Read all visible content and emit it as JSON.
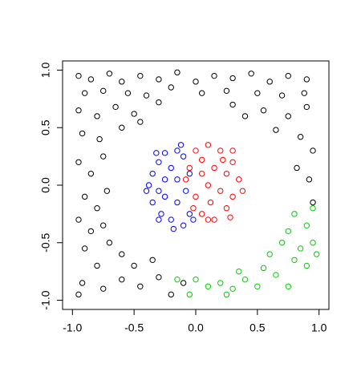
{
  "chart_data": {
    "type": "scatter",
    "xlim": [
      -1.08,
      1.08
    ],
    "ylim": [
      -1.08,
      1.08
    ],
    "xticks": [
      {
        "value": -1,
        "label": "-1.0"
      },
      -0.5,
      {
        "value": 0,
        "label": "0.0"
      },
      0.5,
      {
        "value": 1,
        "label": "1.0"
      }
    ],
    "yticks": [
      {
        "value": -1,
        "label": "-1.0"
      },
      -0.5,
      {
        "value": 0,
        "label": "0.0"
      },
      0.5,
      {
        "value": 1,
        "label": "1.0"
      }
    ],
    "series": [
      {
        "color": "#000000",
        "x": [
          -0.95,
          -0.85,
          -0.7,
          -0.6,
          -0.45,
          -0.3,
          -0.15,
          0.0,
          0.15,
          0.3,
          0.45,
          0.6,
          0.75,
          0.9,
          -0.9,
          -0.75,
          -0.55,
          -0.4,
          -0.2,
          0.05,
          0.25,
          0.5,
          0.7,
          0.88,
          -0.95,
          -0.8,
          -0.65,
          -0.5,
          0.55,
          0.75,
          0.9,
          -0.92,
          -0.78,
          -0.6,
          0.65,
          0.85,
          0.95,
          -0.95,
          -0.85,
          -0.75,
          0.82,
          0.92,
          -0.9,
          -0.8,
          -0.72,
          0.95,
          -0.95,
          -0.85,
          -0.75,
          -0.9,
          -0.7,
          -0.6,
          -0.8,
          -0.5,
          -0.92,
          -0.75,
          -0.6,
          -0.45,
          -0.3,
          -0.2,
          -0.95,
          -0.35,
          -0.1,
          0.4,
          -0.45,
          0.3,
          -0.3
        ],
        "y": [
          0.95,
          0.92,
          0.97,
          0.9,
          0.95,
          0.92,
          0.98,
          0.9,
          0.95,
          0.93,
          0.97,
          0.9,
          0.95,
          0.92,
          0.8,
          0.82,
          0.8,
          0.78,
          0.85,
          0.8,
          0.82,
          0.8,
          0.78,
          0.8,
          0.65,
          0.6,
          0.68,
          0.62,
          0.65,
          0.6,
          0.68,
          0.45,
          0.4,
          0.5,
          0.48,
          0.42,
          0.3,
          0.2,
          0.1,
          0.25,
          0.15,
          0.05,
          -0.1,
          -0.2,
          -0.05,
          -0.15,
          -0.3,
          -0.4,
          -0.35,
          -0.55,
          -0.5,
          -0.6,
          -0.7,
          -0.7,
          -0.85,
          -0.9,
          -0.82,
          -0.88,
          -0.8,
          -0.95,
          -0.95,
          -0.65,
          -0.85,
          0.6,
          0.55,
          0.7,
          0.72
        ]
      },
      {
        "color": "#0000ff",
        "x": [
          -0.35,
          -0.3,
          -0.25,
          -0.15,
          -0.1,
          -0.2,
          -0.38,
          -0.3,
          -0.25,
          -0.15,
          -0.05,
          -0.35,
          -0.28,
          -0.2,
          -0.1,
          -0.05,
          -0.15,
          -0.25,
          -0.08,
          -0.32,
          -0.4,
          -0.18,
          -0.02,
          -0.12,
          -0.3
        ],
        "y": [
          0.1,
          0.2,
          0.28,
          0.3,
          0.25,
          0.15,
          0.0,
          -0.05,
          0.05,
          0.05,
          0.1,
          -0.15,
          -0.25,
          -0.3,
          -0.35,
          -0.25,
          -0.15,
          -0.1,
          -0.05,
          0.28,
          -0.05,
          -0.38,
          -0.3,
          0.35,
          -0.3
        ]
      },
      {
        "color": "#ff0000",
        "x": [
          0.0,
          0.1,
          0.2,
          0.3,
          0.35,
          0.3,
          0.25,
          0.15,
          0.05,
          -0.05,
          0.05,
          0.15,
          0.25,
          0.1,
          0.2,
          0.0,
          -0.08,
          0.3,
          0.12,
          0.22,
          0.38,
          0.05,
          -0.02,
          0.28,
          0.1
        ],
        "y": [
          0.3,
          0.35,
          0.3,
          0.2,
          0.05,
          -0.1,
          -0.2,
          -0.3,
          -0.25,
          0.15,
          0.1,
          0.15,
          0.1,
          0.0,
          -0.05,
          -0.1,
          0.05,
          0.3,
          -0.15,
          0.22,
          -0.05,
          0.22,
          -0.2,
          -0.28,
          -0.3
        ]
      },
      {
        "color": "#00cd00",
        "x": [
          -0.15,
          -0.05,
          0.0,
          0.1,
          0.2,
          0.3,
          0.4,
          0.5,
          0.55,
          0.65,
          0.75,
          0.8,
          0.9,
          0.85,
          0.95,
          0.7,
          0.75,
          0.9,
          0.95,
          0.8,
          0.6,
          0.35,
          0.25,
          0.98
        ],
        "y": [
          -0.82,
          -0.95,
          -0.82,
          -0.88,
          -0.85,
          -0.9,
          -0.82,
          -0.88,
          -0.72,
          -0.78,
          -0.88,
          -0.65,
          -0.7,
          -0.55,
          -0.5,
          -0.5,
          -0.4,
          -0.35,
          -0.2,
          -0.25,
          -0.6,
          -0.75,
          -0.95,
          -0.6
        ]
      }
    ]
  }
}
